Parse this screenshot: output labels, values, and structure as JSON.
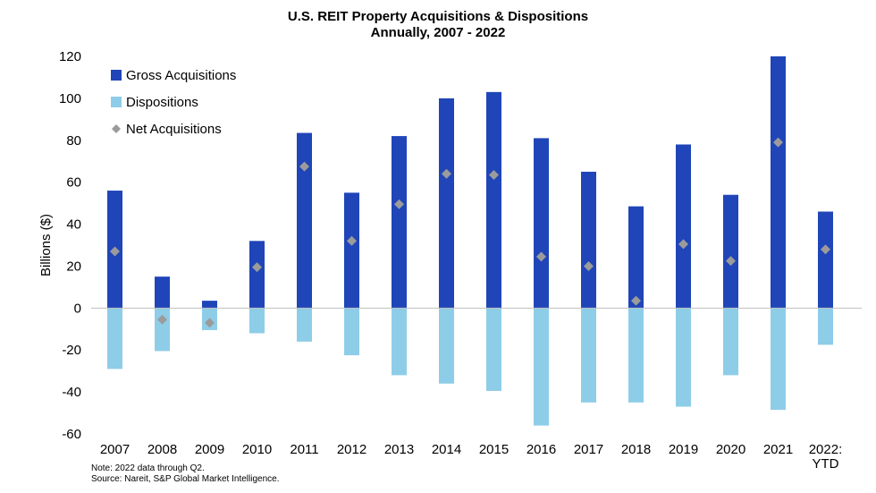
{
  "chart_data": {
    "type": "bar",
    "title": "U.S. REIT Property Acquisitions & Dispositions",
    "subtitle": "Annually, 2007 - 2022",
    "ylabel": "Billions ($)",
    "xlabel": "",
    "ylim": [
      -60,
      120
    ],
    "yticks": [
      -60,
      -40,
      -20,
      0,
      20,
      40,
      60,
      80,
      100,
      120
    ],
    "categories": [
      "2007",
      "2008",
      "2009",
      "2010",
      "2011",
      "2012",
      "2013",
      "2014",
      "2015",
      "2016",
      "2017",
      "2018",
      "2019",
      "2020",
      "2021",
      "2022: YTD"
    ],
    "category_lines": [
      [
        "2007"
      ],
      [
        "2008"
      ],
      [
        "2009"
      ],
      [
        "2010"
      ],
      [
        "2011"
      ],
      [
        "2012"
      ],
      [
        "2013"
      ],
      [
        "2014"
      ],
      [
        "2015"
      ],
      [
        "2016"
      ],
      [
        "2017"
      ],
      [
        "2018"
      ],
      [
        "2019"
      ],
      [
        "2020"
      ],
      [
        "2021"
      ],
      [
        "2022:",
        "YTD"
      ]
    ],
    "series": [
      {
        "name": "Gross Acquisitions",
        "kind": "bar",
        "color": "#1f45b8",
        "values": [
          56,
          15,
          3.5,
          32,
          83.5,
          55,
          82,
          100,
          103,
          81,
          65,
          48.5,
          78,
          54,
          120,
          46
        ]
      },
      {
        "name": "Dispositions",
        "kind": "bar",
        "color": "#8ecde8",
        "values": [
          -29,
          -20.5,
          -10.5,
          -12,
          -16,
          -22.5,
          -32,
          -36,
          -39.5,
          -56,
          -45,
          -45,
          -47,
          -32,
          -48.5,
          -17.5
        ]
      },
      {
        "name": "Net Acquisitions",
        "kind": "marker",
        "color": "#9b9b9b",
        "values": [
          27,
          -5.5,
          -7,
          19.5,
          67.5,
          32,
          49.5,
          64,
          63.5,
          24.5,
          20,
          3.5,
          30.5,
          22.5,
          79,
          28
        ]
      }
    ],
    "legend_position": "top-left",
    "grid": false
  },
  "notes": {
    "note": "Note: 2022 data through Q2.",
    "source": "Source: Nareit, S&P Global Market Intelligence."
  }
}
